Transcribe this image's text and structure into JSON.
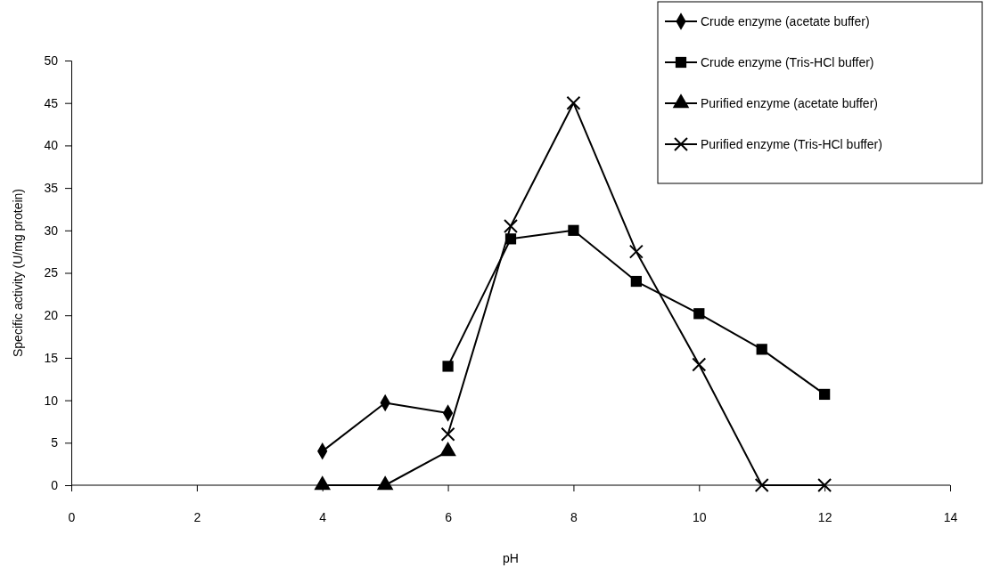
{
  "chart_data": {
    "type": "line",
    "xlabel": "pH",
    "ylabel": "Specific activity (U/mg protein)",
    "xlim": [
      0,
      14
    ],
    "xticks": [
      0,
      2,
      4,
      6,
      8,
      10,
      12,
      14
    ],
    "ylim": [
      0,
      50
    ],
    "yticks": [
      0,
      5,
      10,
      15,
      20,
      25,
      30,
      35,
      40,
      45,
      50
    ],
    "grid": false,
    "legend": "top right",
    "series": [
      {
        "name": "Crude enzyme (acetate buffer)",
        "color": "#000000",
        "marker": "diamond",
        "x": [
          4,
          5,
          6
        ],
        "values": [
          4,
          9.7,
          8.5
        ]
      },
      {
        "name": "Crude enzyme (Tris-HCl buffer)",
        "color": "#000000",
        "marker": "square",
        "x": [
          6,
          7,
          8,
          9,
          10,
          11,
          12
        ],
        "values": [
          14,
          29,
          30,
          24,
          20.2,
          16,
          10.7
        ]
      },
      {
        "name": "Purified enzyme (acetate buffer)",
        "color": "#000000",
        "marker": "triangle",
        "x": [
          4,
          5,
          6
        ],
        "values": [
          0,
          0,
          4
        ]
      },
      {
        "name": "Purified enzyme (Tris-HCl buffer)",
        "color": "#000000",
        "marker": "cross",
        "x": [
          6,
          7,
          8,
          9,
          10,
          11,
          12
        ],
        "values": [
          6,
          30.5,
          45,
          27.5,
          14.2,
          0,
          0
        ]
      }
    ]
  }
}
